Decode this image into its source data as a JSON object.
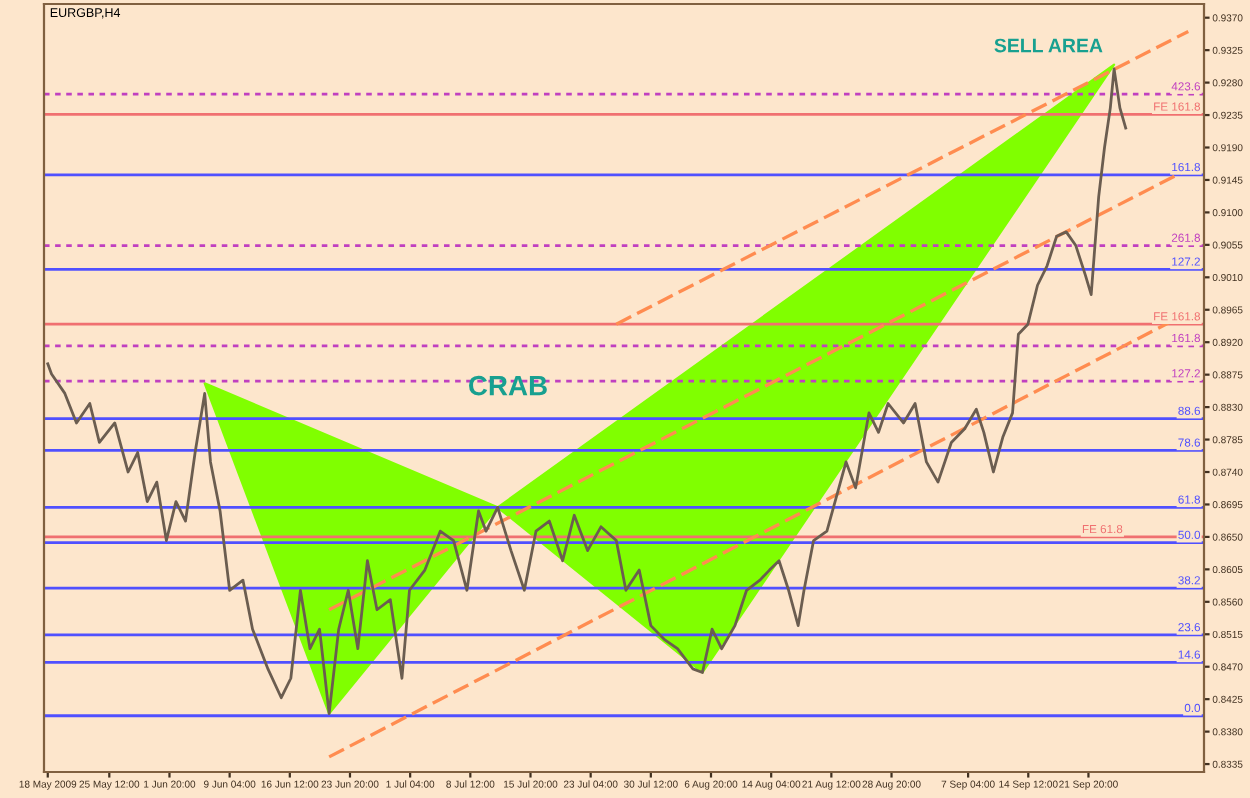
{
  "chart_data": {
    "type": "line",
    "title": "EURGBP,H4",
    "xlim": [
      "2009-05-17T13:00",
      "2009-10-05T22:00"
    ],
    "ylim": [
      0.8324,
      0.9389
    ],
    "xticks": [
      {
        "value": "2009-05-18T00:00",
        "label": "18 May 2009"
      },
      {
        "value": "2009-05-25T12:00",
        "label": "25 May 12:00"
      },
      {
        "value": "2009-06-01T20:00",
        "label": "1 Jun 20:00"
      },
      {
        "value": "2009-06-09T04:00",
        "label": "9 Jun 04:00"
      },
      {
        "value": "2009-06-16T12:00",
        "label": "16 Jun 12:00"
      },
      {
        "value": "2009-06-23T20:00",
        "label": "23 Jun 20:00"
      },
      {
        "value": "2009-07-01T04:00",
        "label": "1 Jul 04:00"
      },
      {
        "value": "2009-07-08T12:00",
        "label": "8 Jul 12:00"
      },
      {
        "value": "2009-07-15T20:00",
        "label": "15 Jul 20:00"
      },
      {
        "value": "2009-07-23T04:00",
        "label": "23 Jul 04:00"
      },
      {
        "value": "2009-07-30T12:00",
        "label": "30 Jul 12:00"
      },
      {
        "value": "2009-08-06T20:00",
        "label": "6 Aug 20:00"
      },
      {
        "value": "2009-08-14T04:00",
        "label": "14 Aug 04:00"
      },
      {
        "value": "2009-08-21T12:00",
        "label": "21 Aug 12:00"
      },
      {
        "value": "2009-08-28T20:00",
        "label": "28 Aug 20:00"
      },
      {
        "value": "2009-09-07T04:00",
        "label": "7 Sep 04:00"
      },
      {
        "value": "2009-09-14T12:00",
        "label": "14 Sep 12:00"
      },
      {
        "value": "2009-09-21T20:00",
        "label": "21 Sep 20:00"
      }
    ],
    "yticks": [
      {
        "value": 0.937,
        "label": "0.9370"
      },
      0.9325,
      {
        "value": 0.928,
        "label": "0.9280"
      },
      0.9235,
      {
        "value": 0.919,
        "label": "0.9190"
      },
      0.9145,
      {
        "value": 0.91,
        "label": "0.9100"
      },
      0.9055,
      {
        "value": 0.901,
        "label": "0.9010"
      },
      0.8965,
      {
        "value": 0.892,
        "label": "0.8920"
      },
      0.8875,
      {
        "value": 0.883,
        "label": "0.8830"
      },
      0.8785,
      {
        "value": 0.874,
        "label": "0.8740"
      },
      0.8695,
      {
        "value": 0.865,
        "label": "0.8650"
      },
      0.8605,
      {
        "value": 0.856,
        "label": "0.8560"
      },
      0.8515,
      {
        "value": 0.847,
        "label": "0.8470"
      },
      0.8425,
      {
        "value": 0.838,
        "label": "0.8380"
      },
      0.8335
    ],
    "grid": false,
    "legend": false,
    "series": [
      {
        "type": "area",
        "color": "#80ff00",
        "x": [
          "2009-06-06T03:00",
          "2009-06-21T07:00",
          "2009-07-11T20:00",
          "2009-06-06T03:00"
        ],
        "values": [
          0.8863,
          0.8405,
          0.8691,
          0.8863
        ]
      },
      {
        "type": "area",
        "color": "#80ff00",
        "x": [
          "2009-07-11T20:00",
          "2009-08-05T19:00",
          "2009-09-24T23:00",
          "2009-07-11T20:00"
        ],
        "values": [
          0.8691,
          0.8462,
          0.9305,
          0.8691
        ]
      },
      {
        "type": "line",
        "color": "#ff8c50",
        "line_style": "dashed",
        "x": [
          "2009-07-26T07:00",
          "2009-10-04T00:00"
        ],
        "values": [
          0.8945,
          0.9351
        ]
      },
      {
        "type": "line",
        "color": "#ff8c50",
        "line_style": "dashed",
        "x": [
          "2009-06-21T07:00",
          "2009-10-04T00:00"
        ],
        "values": [
          0.8549,
          0.916
        ]
      },
      {
        "type": "line",
        "color": "#ff8c50",
        "line_style": "dashed",
        "x": [
          "2009-06-21T07:00",
          "2009-10-04T00:00"
        ],
        "values": [
          0.8345,
          0.8961
        ]
      },
      {
        "color": "#6b5d50",
        "line_style": "solid",
        "x": [
          "2009-05-18T00:00",
          "2009-05-18T11:00",
          "2009-05-20T02:00",
          "2009-05-21T12:00",
          "2009-05-23T03:00",
          "2009-05-24T07:00",
          "2009-05-26T04:00",
          "2009-05-27T19:00",
          "2009-05-28T23:00",
          "2009-05-30T03:00",
          "2009-05-31T07:00",
          "2009-06-01T11:00",
          "2009-06-02T15:00",
          "2009-06-03T19:00",
          "2009-06-04T23:00",
          "2009-06-06T03:00",
          "2009-06-06T20:00",
          "2009-06-08T00:00",
          "2009-06-09T04:00",
          "2009-06-10T19:00",
          "2009-06-11T23:00",
          "2009-06-13T20:00",
          "2009-06-15T11:00",
          "2009-06-16T15:00",
          "2009-06-17T19:00",
          "2009-06-18T23:00",
          "2009-06-20T03:00",
          "2009-06-21T07:00",
          "2009-06-22T11:00",
          "2009-06-23T15:00",
          "2009-06-24T19:00",
          "2009-06-25T23:00",
          "2009-06-27T03:00",
          "2009-06-28T18:00",
          "2009-06-30T04:00",
          "2009-07-01T02:00",
          "2009-07-02T23:00",
          "2009-07-04T20:00",
          "2009-07-06T11:00",
          "2009-07-08T02:00",
          "2009-07-09T12:00",
          "2009-07-10T10:00",
          "2009-07-11T20:00",
          "2009-07-13T11:00",
          "2009-07-15T02:00",
          "2009-07-16T12:00",
          "2009-07-18T03:00",
          "2009-07-19T18:00",
          "2009-07-21T04:00",
          "2009-07-22T19:00",
          "2009-07-24T10:00",
          "2009-07-26T07:00",
          "2009-07-27T11:00",
          "2009-07-29T02:00",
          "2009-07-30T12:00",
          "2009-08-01T03:00",
          "2009-08-02T18:00",
          "2009-08-04T15:00",
          "2009-08-05T19:00",
          "2009-08-06T23:00",
          "2009-08-08T03:00",
          "2009-08-09T18:00",
          "2009-08-11T04:00",
          "2009-08-12T19:00",
          "2009-08-13T23:00",
          "2009-08-15T03:00",
          "2009-08-16T07:00",
          "2009-08-17T11:00",
          "2009-08-18T04:00",
          "2009-08-19T08:00",
          "2009-08-20T23:00",
          "2009-08-23T07:00",
          "2009-08-24T11:00",
          "2009-08-26T02:00",
          "2009-08-27T06:00",
          "2009-08-28T10:00",
          "2009-08-30T07:00",
          "2009-08-31T17:00",
          "2009-09-02T02:00",
          "2009-09-03T12:00",
          "2009-09-05T03:00",
          "2009-09-06T18:00",
          "2009-09-08T04:00",
          "2009-09-09T02:00",
          "2009-09-10T06:00",
          "2009-09-11T10:00",
          "2009-09-12T14:00",
          "2009-09-13T07:00",
          "2009-09-14T11:00",
          "2009-09-15T15:00",
          "2009-09-16T19:00",
          "2009-09-17T23:00",
          "2009-09-19T03:00",
          "2009-09-20T07:00",
          "2009-09-21T11:00",
          "2009-09-22T04:00",
          "2009-09-23T02:00",
          "2009-09-23T19:00",
          "2009-09-24T12:00",
          "2009-09-24T23:00",
          "2009-09-25T16:00",
          "2009-09-26T09:00"
        ],
        "values": [
          0.889,
          0.8876,
          0.8849,
          0.8808,
          0.8835,
          0.8781,
          0.8808,
          0.874,
          0.8767,
          0.8699,
          0.8726,
          0.8645,
          0.8699,
          0.8672,
          0.8767,
          0.8849,
          0.8754,
          0.8686,
          0.8576,
          0.859,
          0.8522,
          0.8467,
          0.8427,
          0.8454,
          0.8576,
          0.8495,
          0.8522,
          0.8405,
          0.8522,
          0.8576,
          0.8495,
          0.8617,
          0.8549,
          0.8563,
          0.8454,
          0.8576,
          0.8604,
          0.8658,
          0.8645,
          0.8576,
          0.8686,
          0.8658,
          0.8691,
          0.8631,
          0.8576,
          0.8658,
          0.8672,
          0.8617,
          0.868,
          0.8631,
          0.8664,
          0.8645,
          0.8576,
          0.8604,
          0.8527,
          0.8508,
          0.8495,
          0.8467,
          0.8462,
          0.8522,
          0.8495,
          0.8527,
          0.8576,
          0.859,
          0.8604,
          0.8617,
          0.8576,
          0.8527,
          0.8576,
          0.8645,
          0.8658,
          0.8754,
          0.8718,
          0.8822,
          0.8795,
          0.8835,
          0.8808,
          0.8835,
          0.8754,
          0.8726,
          0.8781,
          0.88,
          0.8827,
          0.8795,
          0.874,
          0.8789,
          0.8822,
          0.8931,
          0.8945,
          0.8999,
          0.9026,
          0.9067,
          0.9073,
          0.9054,
          0.9013,
          0.8986,
          0.9122,
          0.919,
          0.9245,
          0.9299,
          0.9245,
          0.9217
        ]
      }
    ],
    "ref_lines": [
      {
        "axis": "y",
        "value": 0.8402,
        "color": "#5050ff",
        "line_style": "solid"
      },
      {
        "axis": "y",
        "value": 0.8476,
        "color": "#5050ff",
        "line_style": "solid"
      },
      {
        "axis": "y",
        "value": 0.8514,
        "color": "#5050ff",
        "line_style": "solid"
      },
      {
        "axis": "y",
        "value": 0.8579,
        "color": "#5050ff",
        "line_style": "solid"
      },
      {
        "axis": "y",
        "value": 0.8642,
        "color": "#5050ff",
        "line_style": "solid"
      },
      {
        "axis": "y",
        "value": 0.8691,
        "color": "#5050ff",
        "line_style": "solid"
      },
      {
        "axis": "y",
        "value": 0.877,
        "color": "#5050ff",
        "line_style": "solid"
      },
      {
        "axis": "y",
        "value": 0.8814,
        "color": "#5050ff",
        "line_style": "solid"
      },
      {
        "axis": "y",
        "value": 0.9021,
        "color": "#5050ff",
        "line_style": "solid"
      },
      {
        "axis": "y",
        "value": 0.9152,
        "color": "#5050ff",
        "line_style": "solid"
      },
      {
        "axis": "y",
        "value": 0.9264,
        "color": "#c040c0",
        "line_style": "dotted"
      },
      {
        "axis": "y",
        "value": 0.9054,
        "color": "#c040c0",
        "line_style": "dotted"
      },
      {
        "axis": "y",
        "value": 0.8915,
        "color": "#c040c0",
        "line_style": "dotted"
      },
      {
        "axis": "y",
        "value": 0.8866,
        "color": "#c040c0",
        "line_style": "dotted"
      },
      {
        "axis": "y",
        "value": 0.9236,
        "color": "#f07070",
        "line_style": "solid"
      },
      {
        "axis": "y",
        "value": 0.8945,
        "color": "#f07070",
        "line_style": "solid"
      },
      {
        "axis": "y",
        "value": 0.865,
        "color": "#f07070",
        "line_style": "solid"
      }
    ],
    "annotations": [
      {
        "text": "SELL AREA",
        "x": "2009-09-24T23:00",
        "y": 0.9305
      },
      "CRAB",
      "0.0",
      "14.6",
      "23.6",
      "38.2",
      "50.0",
      "61.8",
      "78.6",
      "88.6",
      "127.2",
      "161.8",
      "423.6",
      "261.8",
      "161.8",
      "127.2",
      "FE 161.8",
      "FE 161.8",
      "FE 61.8"
    ]
  }
}
